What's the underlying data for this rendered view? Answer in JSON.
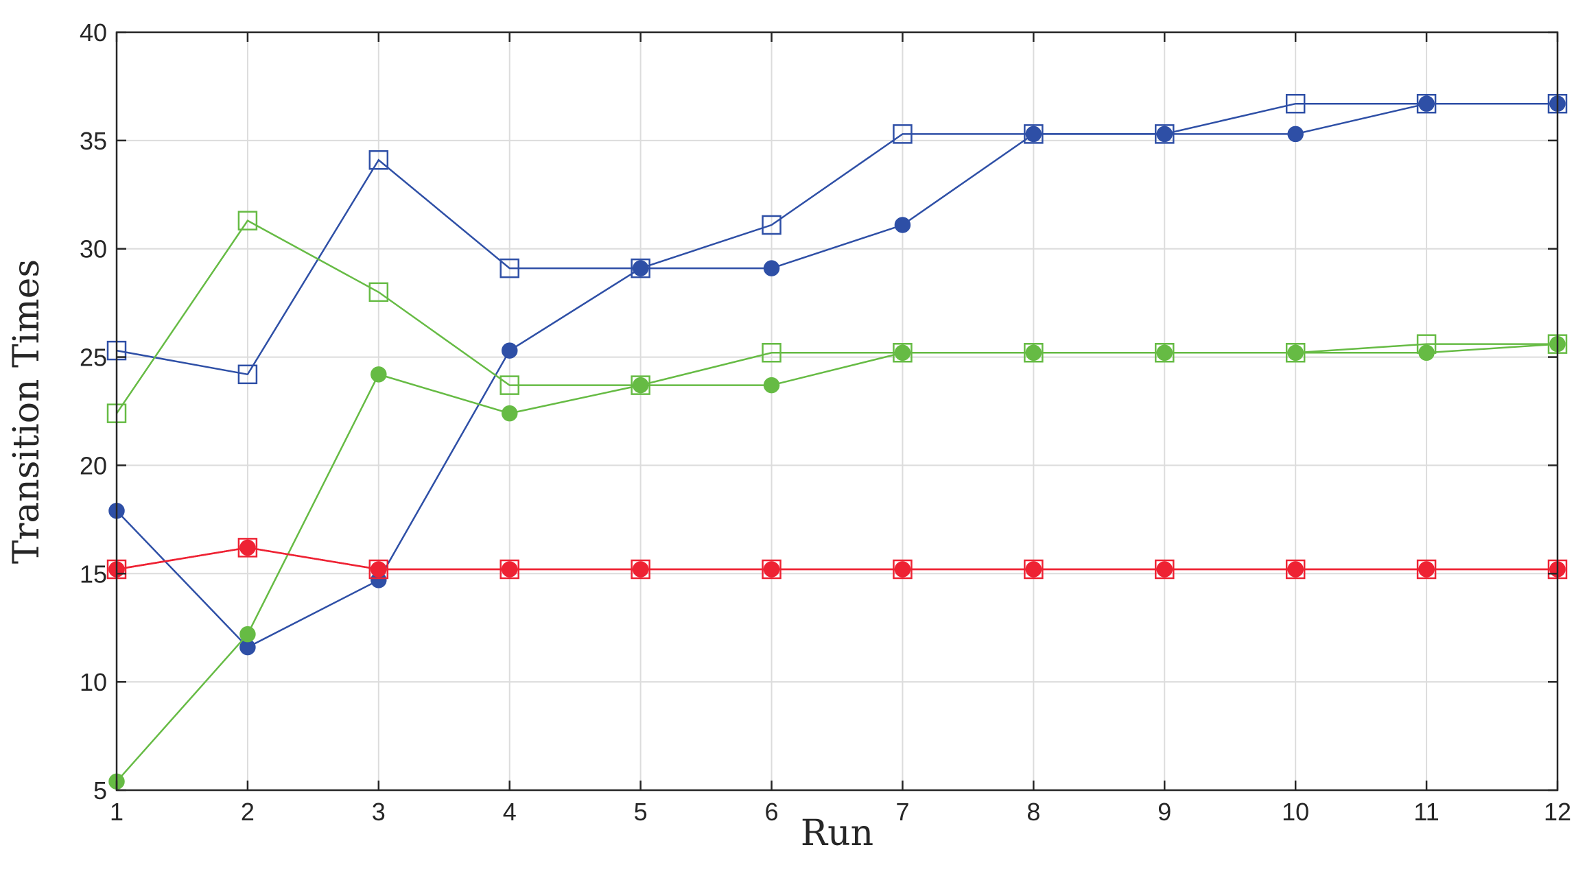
{
  "chart_data": {
    "type": "line",
    "title": "",
    "xlabel": "Run",
    "ylabel": "Transition Times",
    "xlim": [
      1,
      12
    ],
    "ylim": [
      5,
      40
    ],
    "xticks": [
      "1",
      "2",
      "3",
      "4",
      "5",
      "6",
      "7",
      "8",
      "9",
      "10",
      "11",
      "12"
    ],
    "yticks": [
      "5",
      "10",
      "15",
      "20",
      "25",
      "30",
      "35",
      "40"
    ],
    "grid": true,
    "x": [
      1,
      2,
      3,
      4,
      5,
      6,
      7,
      8,
      9,
      10,
      11,
      12
    ],
    "series": [
      {
        "color": "#2e4fa6",
        "marker": "square-open",
        "values": [
          25.3,
          24.2,
          34.1,
          29.1,
          29.1,
          31.1,
          35.3,
          35.3,
          35.3,
          36.7,
          36.7,
          36.7
        ]
      },
      {
        "color": "#2e4fa6",
        "marker": "circle-filled",
        "values": [
          17.9,
          11.6,
          14.7,
          25.3,
          29.1,
          29.1,
          31.1,
          35.3,
          35.3,
          35.3,
          36.7,
          36.7
        ]
      },
      {
        "color": "#66bb44",
        "marker": "square-open",
        "values": [
          22.4,
          31.3,
          28.0,
          23.7,
          23.7,
          25.2,
          25.2,
          25.2,
          25.2,
          25.2,
          25.6,
          25.6
        ]
      },
      {
        "color": "#66bb44",
        "marker": "circle-filled",
        "values": [
          5.4,
          12.2,
          24.2,
          22.4,
          23.7,
          23.7,
          25.2,
          25.2,
          25.2,
          25.2,
          25.2,
          25.6
        ]
      },
      {
        "color": "#ee2233",
        "marker": "square-open",
        "values": [
          15.2,
          16.2,
          15.2,
          15.2,
          15.2,
          15.2,
          15.2,
          15.2,
          15.2,
          15.2,
          15.2,
          15.2
        ]
      },
      {
        "color": "#ee2233",
        "marker": "circle-filled",
        "values": [
          15.2,
          16.2,
          15.2,
          15.2,
          15.2,
          15.2,
          15.2,
          15.2,
          15.2,
          15.2,
          15.2,
          15.2
        ]
      }
    ]
  }
}
